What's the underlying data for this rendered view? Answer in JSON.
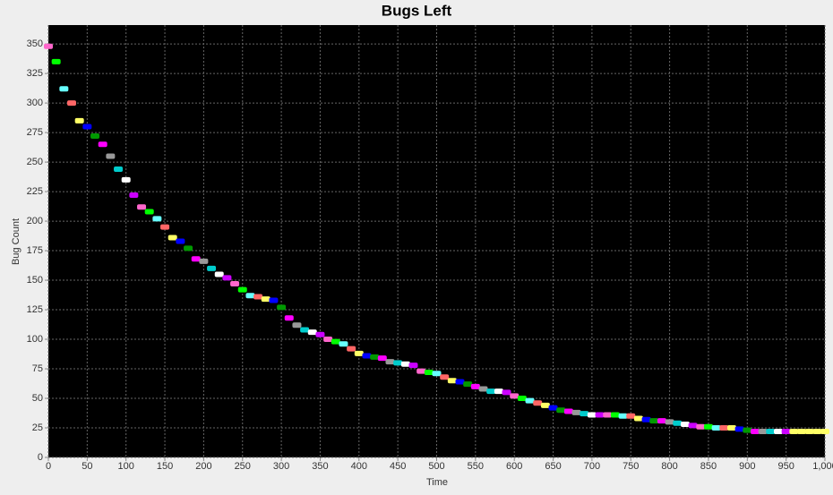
{
  "chart_data": {
    "type": "scatter",
    "title": "Bugs Left",
    "x_label": "Time",
    "y_label": "Bug Count",
    "x": [
      0,
      10,
      20,
      30,
      40,
      50,
      60,
      70,
      80,
      90,
      100,
      110,
      120,
      130,
      140,
      150,
      160,
      170,
      180,
      190,
      200,
      210,
      220,
      230,
      240,
      250,
      260,
      270,
      280,
      290,
      300,
      310,
      320,
      330,
      340,
      350,
      360,
      370,
      380,
      390,
      400,
      410,
      420,
      430,
      440,
      450,
      460,
      470,
      480,
      490,
      500,
      510,
      520,
      530,
      540,
      550,
      560,
      570,
      580,
      590,
      600,
      610,
      620,
      630,
      640,
      650,
      660,
      670,
      680,
      690,
      700,
      710,
      720,
      730,
      740,
      750,
      760,
      770,
      780,
      790,
      800,
      810,
      820,
      830,
      840,
      850,
      860,
      870,
      880,
      890,
      900,
      910,
      920,
      930,
      940,
      950,
      960,
      970,
      980,
      990,
      1000
    ],
    "values": [
      348,
      335,
      312,
      300,
      285,
      280,
      272,
      265,
      255,
      244,
      235,
      222,
      212,
      208,
      202,
      195,
      186,
      183,
      177,
      168,
      166,
      160,
      155,
      152,
      147,
      142,
      137,
      136,
      134,
      133,
      127,
      118,
      112,
      108,
      106,
      104,
      100,
      98,
      96,
      92,
      88,
      86,
      85,
      84,
      81,
      80,
      79,
      78,
      73,
      72,
      71,
      68,
      65,
      64,
      62,
      60,
      58,
      56,
      56,
      55,
      52,
      50,
      48,
      46,
      44,
      42,
      40,
      39,
      38,
      37,
      36,
      36,
      36,
      36,
      35,
      35,
      33,
      32,
      31,
      31,
      30,
      29,
      28,
      27,
      26,
      26,
      25,
      25,
      25,
      24,
      23,
      22,
      22,
      22,
      22,
      22,
      22,
      22,
      22,
      22,
      22
    ],
    "colors": [
      "#ff66cc",
      "#00ff00",
      "#66ffff",
      "#ff6666",
      "#ffff66",
      "#0000ff",
      "#009900",
      "#ff00ff",
      "#999999",
      "#00cccc",
      "#ffffff",
      "#cc00ff",
      "#ff66cc",
      "#00ff00",
      "#66ffff",
      "#ff6666",
      "#ffff66",
      "#0000ff",
      "#009900",
      "#ff00ff",
      "#999999",
      "#00cccc",
      "#ffffff",
      "#cc00ff",
      "#ff66cc",
      "#00ff00",
      "#66ffff",
      "#ff6666",
      "#ffff66",
      "#0000ff",
      "#009900",
      "#ff00ff",
      "#999999",
      "#00cccc",
      "#ffffff",
      "#cc00ff",
      "#ff66cc",
      "#00ff00",
      "#66ffff",
      "#ff6666",
      "#ffff66",
      "#0000ff",
      "#009900",
      "#ff00ff",
      "#999999",
      "#00cccc",
      "#ffffff",
      "#cc00ff",
      "#ff66cc",
      "#00ff00",
      "#66ffff",
      "#ff6666",
      "#ffff66",
      "#0000ff",
      "#009900",
      "#ff00ff",
      "#999999",
      "#00cccc",
      "#ffffff",
      "#cc00ff",
      "#ff66cc",
      "#00ff00",
      "#66ffff",
      "#ff6666",
      "#ffff66",
      "#0000ff",
      "#009900",
      "#ff00ff",
      "#999999",
      "#00cccc",
      "#ffffff",
      "#cc00ff",
      "#ff66cc",
      "#00ff00",
      "#66ffff",
      "#ff6666",
      "#ffff66",
      "#0000ff",
      "#009900",
      "#ff00ff",
      "#999999",
      "#00cccc",
      "#ffffff",
      "#cc00ff",
      "#ff66cc",
      "#00ff00",
      "#66ffff",
      "#ff6666",
      "#ffff66",
      "#0000ff",
      "#009900",
      "#ff00ff",
      "#999999",
      "#00cccc",
      "#ffffff",
      "#cc00ff",
      "#ffff66",
      "#ffff66",
      "#ffff66",
      "#ffff66",
      "#ffff66"
    ],
    "xlim": [
      0,
      1000
    ],
    "xticks": [
      0,
      50,
      100,
      150,
      200,
      250,
      300,
      350,
      400,
      450,
      500,
      550,
      600,
      650,
      700,
      750,
      800,
      850,
      900,
      950,
      {
        "value": 1000,
        "label": "1,000"
      }
    ],
    "ylim": [
      0,
      366
    ],
    "yticks": [
      0,
      25,
      50,
      75,
      100,
      125,
      150,
      175,
      200,
      225,
      250,
      275,
      300,
      325,
      350
    ],
    "grid": true
  }
}
